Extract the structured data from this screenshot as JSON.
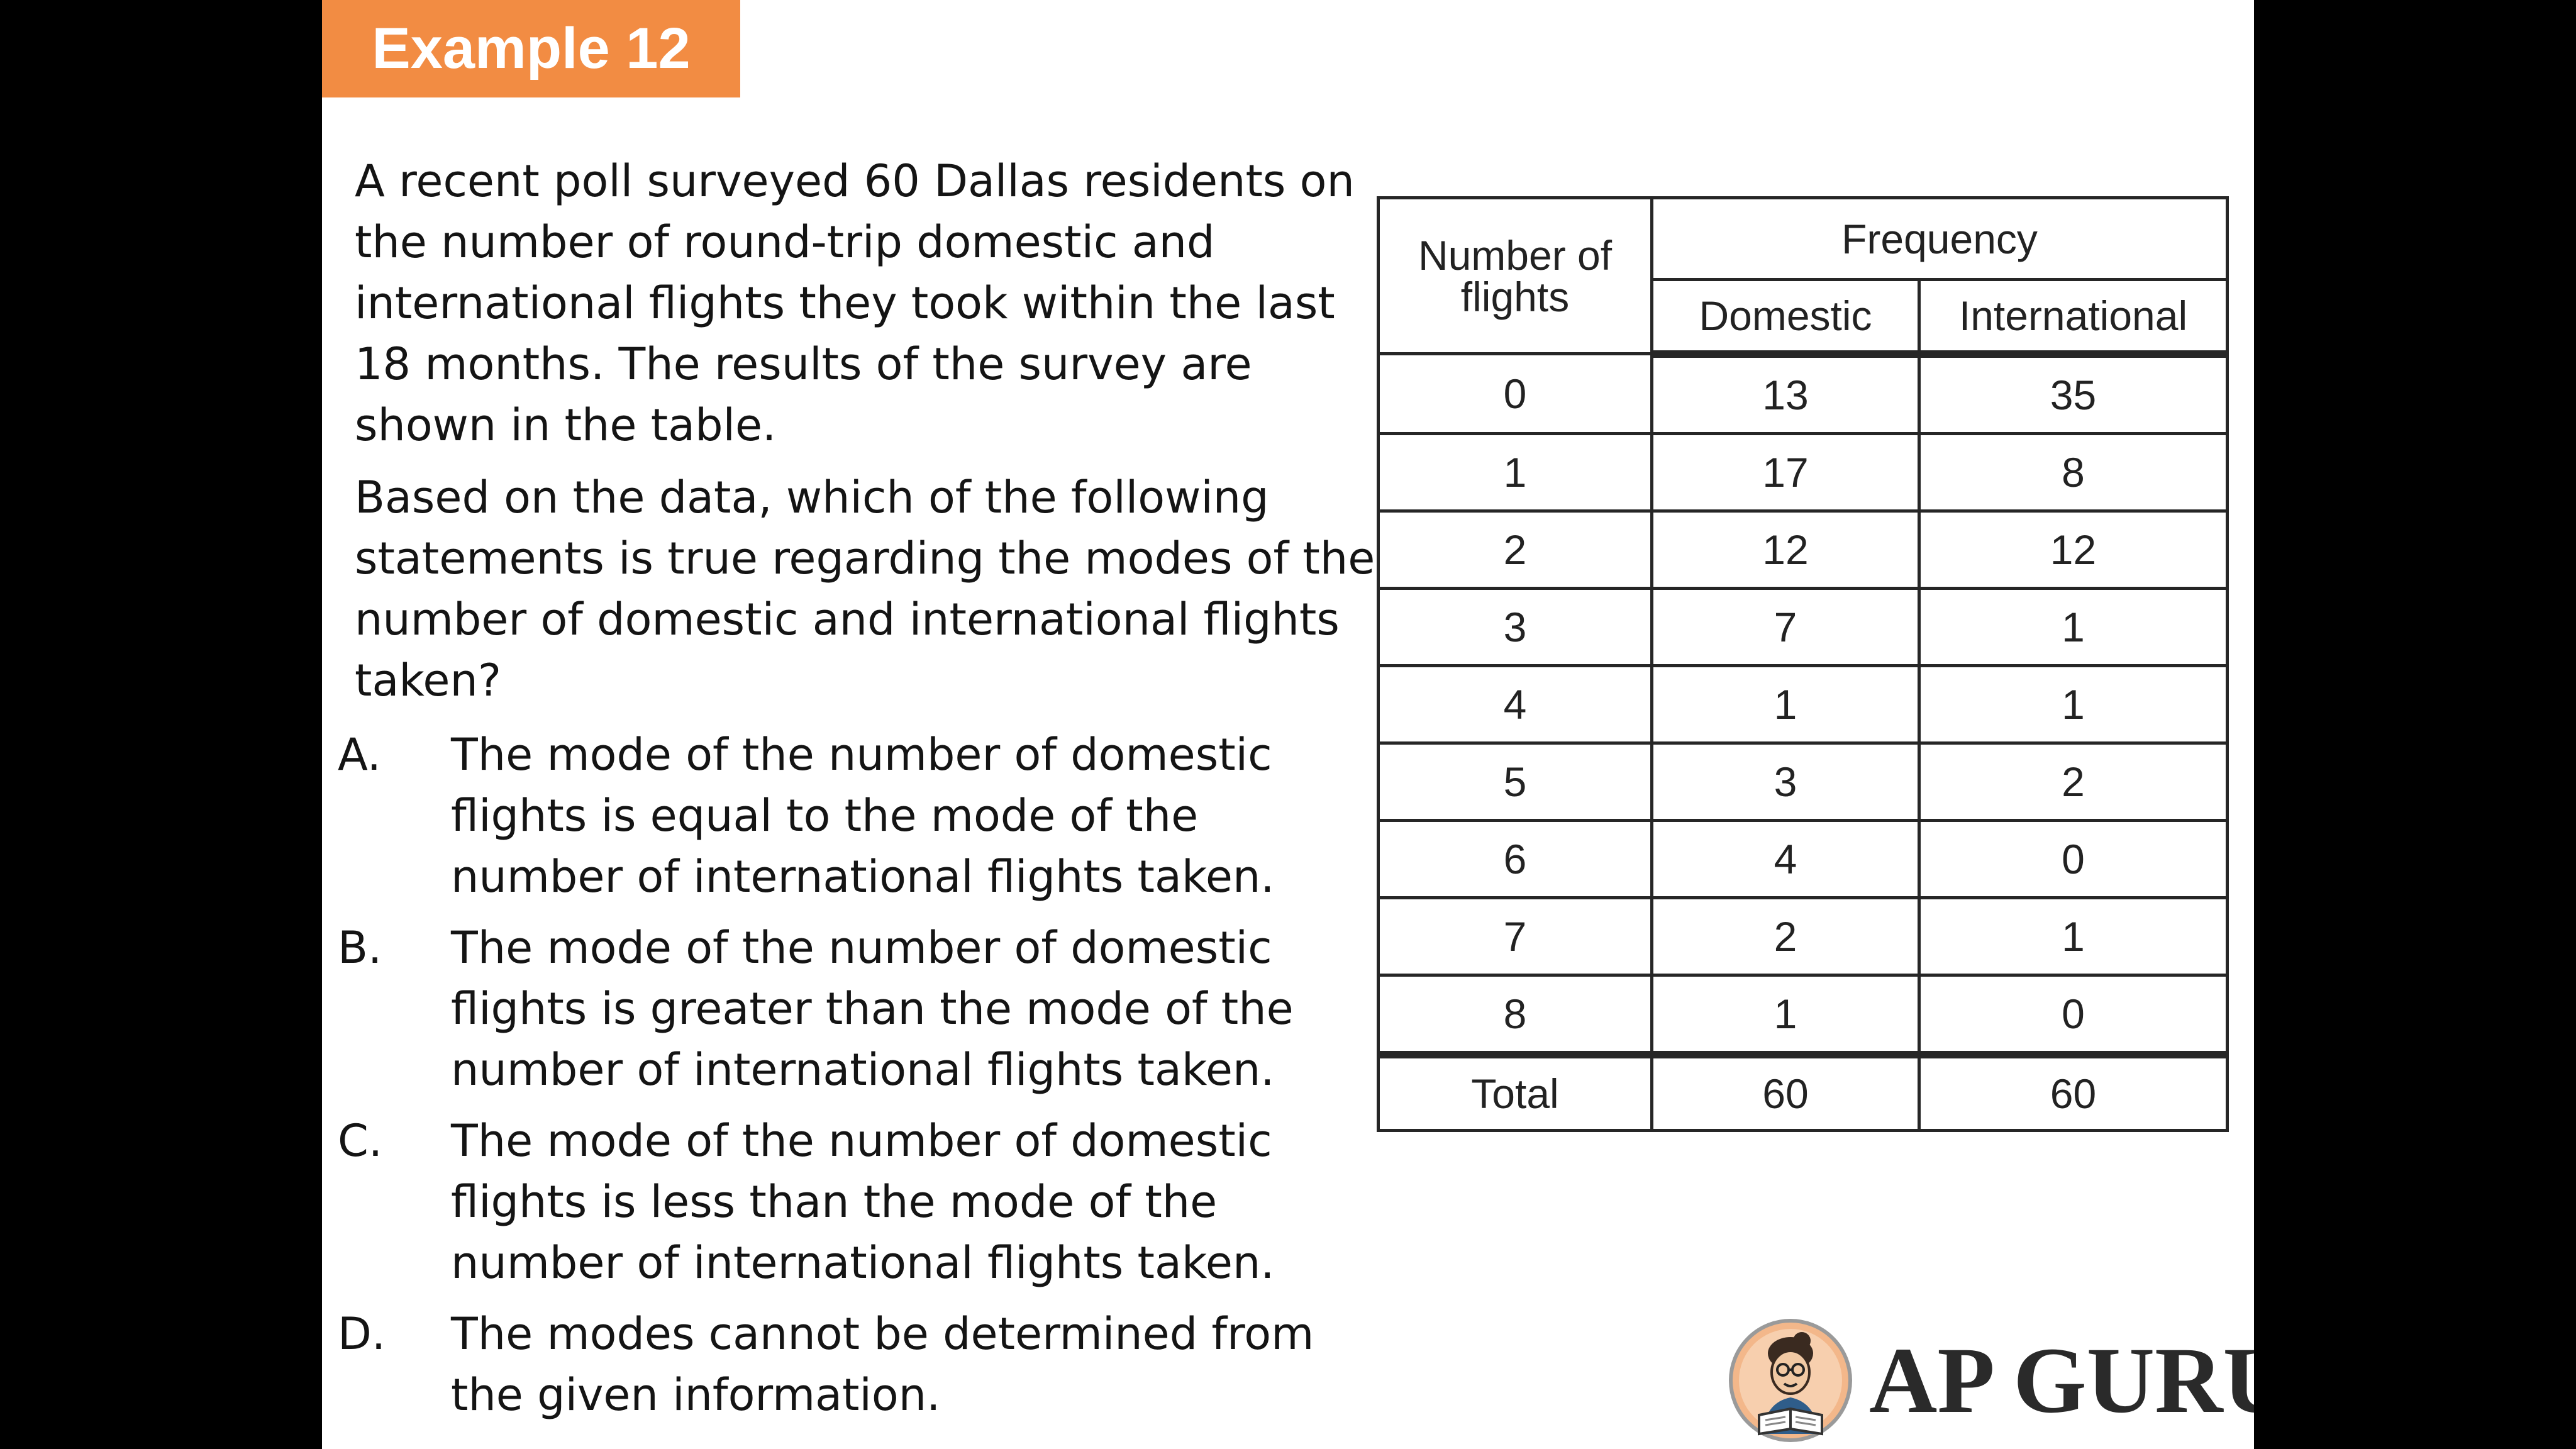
{
  "header": {
    "tag": "Example 12"
  },
  "question": {
    "paragraph1": "A recent poll surveyed 60 Dallas residents on the number of round-trip domestic and international flights they took within the last 18 months.  The results of the survey are shown in the table.",
    "paragraph2": "Based on the data, which of the following statements is true regarding the modes of the number of domestic and international flights taken?"
  },
  "options": [
    {
      "letter": "A.",
      "text": "The mode of the number of domestic flights is equal to the mode of the number of international flights taken."
    },
    {
      "letter": "B.",
      "text": "The mode of the number of domestic flights is greater than the mode of the number of international flights taken."
    },
    {
      "letter": "C.",
      "text": "The mode of the number of domestic flights is less than the mode of the number of international flights taken."
    },
    {
      "letter": "D.",
      "text": "The modes cannot be determined from the given information."
    }
  ],
  "table": {
    "col1_header": "Number of flights",
    "group_header": "Frequency",
    "col2_header": "Domestic",
    "col3_header": "International",
    "rows": [
      {
        "flights": "0",
        "domestic": "13",
        "international": "35"
      },
      {
        "flights": "1",
        "domestic": "17",
        "international": "8"
      },
      {
        "flights": "2",
        "domestic": "12",
        "international": "12"
      },
      {
        "flights": "3",
        "domestic": "7",
        "international": "1"
      },
      {
        "flights": "4",
        "domestic": "1",
        "international": "1"
      },
      {
        "flights": "5",
        "domestic": "3",
        "international": "2"
      },
      {
        "flights": "6",
        "domestic": "4",
        "international": "0"
      },
      {
        "flights": "7",
        "domestic": "2",
        "international": "1"
      },
      {
        "flights": "8",
        "domestic": "1",
        "international": "0"
      }
    ],
    "total": {
      "label": "Total",
      "domestic": "60",
      "international": "60"
    }
  },
  "logo": {
    "text": "AP GURU",
    "icon": "reader-mascot-icon"
  },
  "colors": {
    "accent": "#f28c43",
    "background": "#000000",
    "slide": "#ffffff",
    "text": "#141414"
  }
}
